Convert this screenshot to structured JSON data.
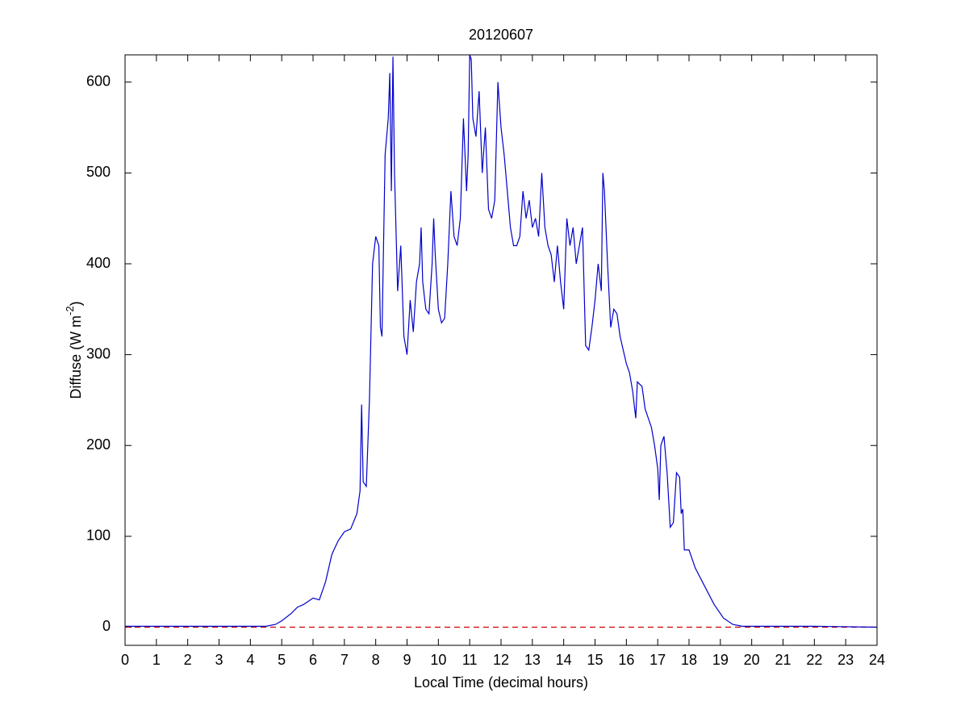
{
  "chart_data": {
    "type": "line",
    "title": "20120607",
    "xlabel": "Local Time (decimal hours)",
    "ylabel_parts": [
      "Diffuse (W m",
      "-2",
      ")"
    ],
    "x": [
      0,
      2,
      4,
      4.5,
      4.8,
      5,
      5.3,
      5.5,
      5.7,
      6,
      6.2,
      6.4,
      6.6,
      6.8,
      7,
      7.2,
      7.4,
      7.5,
      7.55,
      7.6,
      7.7,
      7.8,
      7.9,
      8,
      8.1,
      8.15,
      8.2,
      8.3,
      8.4,
      8.45,
      8.5,
      8.55,
      8.6,
      8.7,
      8.8,
      8.9,
      9,
      9.1,
      9.2,
      9.3,
      9.4,
      9.45,
      9.5,
      9.6,
      9.7,
      9.8,
      9.85,
      9.9,
      10,
      10.1,
      10.2,
      10.3,
      10.4,
      10.5,
      10.6,
      10.7,
      10.8,
      10.9,
      10.95,
      11,
      11.05,
      11.1,
      11.2,
      11.3,
      11.4,
      11.5,
      11.6,
      11.7,
      11.8,
      11.9,
      12,
      12.1,
      12.2,
      12.3,
      12.4,
      12.5,
      12.6,
      12.7,
      12.8,
      12.9,
      13,
      13.1,
      13.2,
      13.3,
      13.4,
      13.5,
      13.6,
      13.7,
      13.8,
      13.9,
      14,
      14.1,
      14.2,
      14.3,
      14.4,
      14.5,
      14.6,
      14.7,
      14.8,
      14.9,
      15,
      15.1,
      15.2,
      15.25,
      15.3,
      15.4,
      15.5,
      15.6,
      15.7,
      15.8,
      15.9,
      16,
      16.1,
      16.2,
      16.3,
      16.35,
      16.5,
      16.6,
      16.8,
      16.9,
      17,
      17.05,
      17.1,
      17.2,
      17.3,
      17.4,
      17.5,
      17.6,
      17.7,
      17.75,
      17.8,
      17.85,
      18,
      18.2,
      18.5,
      18.8,
      19.1,
      19.4,
      19.7,
      20,
      22,
      24
    ],
    "series": [
      {
        "color": "#0000cc",
        "values": [
          1,
          1,
          1,
          1,
          3,
          7,
          15,
          22,
          25,
          32,
          30,
          50,
          80,
          95,
          105,
          108,
          125,
          150,
          245,
          160,
          155,
          250,
          400,
          430,
          420,
          330,
          320,
          520,
          560,
          610,
          480,
          628,
          500,
          370,
          420,
          320,
          300,
          360,
          325,
          380,
          400,
          440,
          380,
          350,
          345,
          400,
          450,
          410,
          350,
          335,
          340,
          400,
          480,
          430,
          420,
          450,
          560,
          480,
          520,
          630,
          625,
          560,
          540,
          590,
          500,
          550,
          460,
          450,
          470,
          600,
          550,
          520,
          480,
          440,
          420,
          420,
          430,
          480,
          450,
          470,
          440,
          450,
          430,
          500,
          440,
          420,
          410,
          380,
          420,
          380,
          350,
          450,
          420,
          440,
          400,
          420,
          440,
          310,
          305,
          330,
          360,
          400,
          370,
          500,
          480,
          400,
          330,
          350,
          345,
          320,
          305,
          290,
          280,
          260,
          230,
          270,
          265,
          240,
          220,
          200,
          175,
          140,
          200,
          210,
          170,
          110,
          115,
          170,
          165,
          125,
          130,
          85,
          85,
          65,
          45,
          25,
          10,
          3,
          1,
          1,
          1,
          0
        ]
      }
    ],
    "hline": {
      "value": 0,
      "color": "#cc0000"
    },
    "xlim": [
      0,
      24
    ],
    "xticks": [
      0,
      1,
      2,
      3,
      4,
      5,
      6,
      7,
      8,
      9,
      10,
      11,
      12,
      13,
      14,
      15,
      16,
      17,
      18,
      19,
      20,
      21,
      22,
      23,
      24
    ],
    "ylim": [
      -20,
      630
    ],
    "yticks": [
      0,
      100,
      200,
      300,
      400,
      500,
      600
    ]
  }
}
